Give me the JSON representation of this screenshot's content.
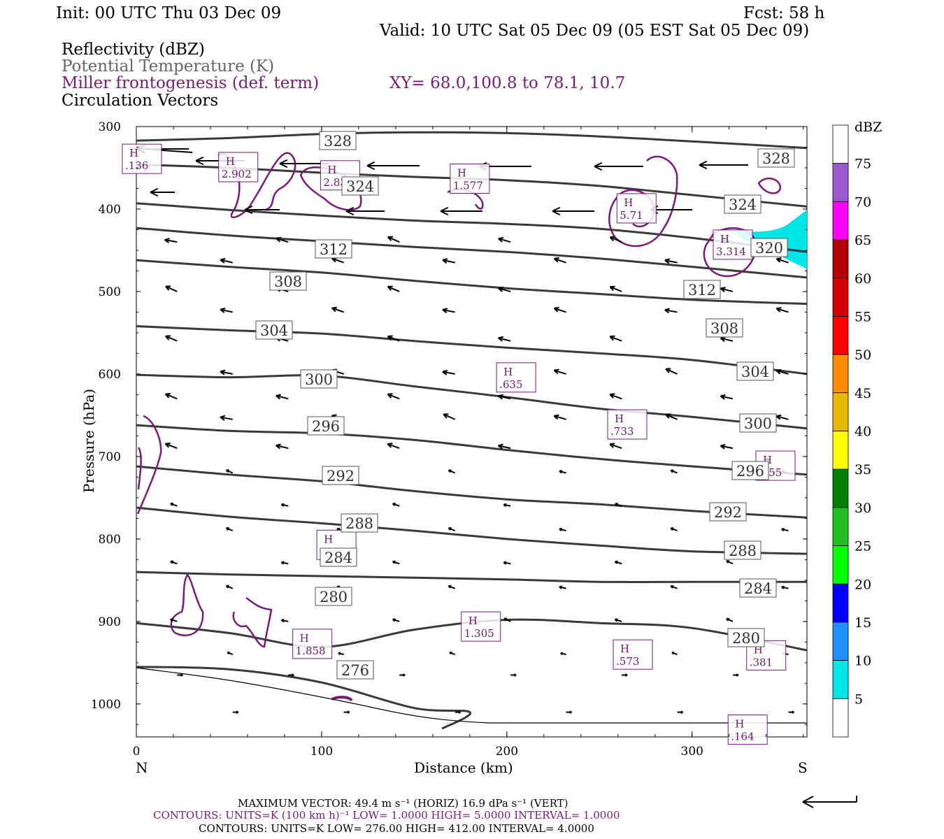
{
  "header": {
    "init": "Init: 00 UTC Thu 03 Dec 09",
    "fcst": "Fcst:   58 h",
    "valid": "Valid: 10 UTC Sat 05 Dec 09 (05 EST Sat 05 Dec 09)",
    "line1": "Reflectivity (dBZ)",
    "line2": "Potential Temperature (K)",
    "line3": "Miller frontogenesis (def. term)",
    "xy": "XY=  68.0,100.8 to  78.1, 10.7",
    "line4": "Circulation Vectors"
  },
  "axes": {
    "ylabel": "Pressure (hPa)",
    "xlabel": "Distance (km)",
    "y_ticks": [
      "300",
      "400",
      "500",
      "600",
      "700",
      "800",
      "900",
      "1000"
    ],
    "x_ticks": [
      "0",
      "100",
      "200",
      "300"
    ],
    "left_end": "N",
    "right_end": "S"
  },
  "colorbar": {
    "title": "dBZ",
    "levels": [
      "75",
      "70",
      "65",
      "60",
      "55",
      "50",
      "45",
      "40",
      "35",
      "30",
      "25",
      "20",
      "15",
      "10",
      "5"
    ],
    "colors": [
      "#ffffff",
      "#9b59d0",
      "#ff00ff",
      "#b30000",
      "#d40000",
      "#ff0000",
      "#ff8c00",
      "#e6b800",
      "#ffff00",
      "#008000",
      "#20c020",
      "#00ff00",
      "#0000ff",
      "#1e90ff",
      "#00e5e5"
    ]
  },
  "footer": {
    "max_vector": "MAXIMUM VECTOR:  49.4 m s⁻¹ (HORIZ)          16.9 dPa s⁻¹ (VERT)",
    "contours_fg": "CONTOURS:  UNITS=K (100 km h)⁻¹  LOW=   1.0000      HIGH=   5.0000      INTERVAL=    1.0000",
    "contours_theta": "CONTOURS:  UNITS=K  LOW=   276.00       HIGH=   412.00       INTERVAL=     4.0000"
  },
  "chart_data": {
    "type": "contour-cross-section",
    "xlim": [
      0,
      362
    ],
    "ylim": [
      1040,
      300
    ],
    "theta_contours": [
      {
        "label": "328",
        "x": [
          0,
          50,
          100,
          150,
          200,
          250,
          300,
          362
        ],
        "y": [
          317,
          314,
          309,
          307,
          308,
          312,
          318,
          326
        ]
      },
      {
        "label": "324",
        "x": [
          0,
          50,
          100,
          150,
          200,
          250,
          300,
          362
        ],
        "y": [
          346,
          350,
          356,
          361,
          365,
          372,
          383,
          397
        ]
      },
      {
        "label": "320",
        "x": [
          0,
          50,
          100,
          150,
          200,
          250,
          300,
          362
        ],
        "y": [
          393,
          401,
          408,
          414,
          418,
          424,
          435,
          452
        ]
      },
      {
        "label": "312",
        "x": [
          0,
          50,
          100,
          150,
          200,
          250,
          300,
          362
        ],
        "y": [
          423,
          432,
          439,
          446,
          452,
          460,
          470,
          483
        ]
      },
      {
        "label": "308",
        "x": [
          0,
          50,
          100,
          150,
          200,
          250,
          300,
          362
        ],
        "y": [
          462,
          470,
          477,
          487,
          496,
          503,
          510,
          515
        ]
      },
      {
        "label": "304",
        "x": [
          0,
          50,
          100,
          150,
          200,
          250,
          300,
          362
        ],
        "y": [
          542,
          547,
          551,
          560,
          568,
          575,
          583,
          600
        ]
      },
      {
        "label": "300",
        "x": [
          0,
          50,
          100,
          150,
          200,
          250,
          300,
          362
        ],
        "y": [
          601,
          604,
          602,
          615,
          628,
          642,
          652,
          666
        ]
      },
      {
        "label": "296",
        "x": [
          0,
          50,
          100,
          150,
          200,
          250,
          300,
          362
        ],
        "y": [
          662,
          669,
          672,
          680,
          692,
          703,
          712,
          722
        ]
      },
      {
        "label": "292",
        "x": [
          0,
          50,
          100,
          150,
          200,
          250,
          300,
          362
        ],
        "y": [
          712,
          722,
          730,
          742,
          752,
          758,
          766,
          774
        ]
      },
      {
        "label": "288",
        "x": [
          0,
          50,
          100,
          150,
          200,
          250,
          300,
          362
        ],
        "y": [
          762,
          773,
          781,
          790,
          800,
          808,
          815,
          818
        ]
      },
      {
        "label": "284",
        "x": [
          0,
          50,
          100,
          150,
          200,
          250,
          300,
          362
        ],
        "y": [
          840,
          843,
          845,
          847,
          849,
          852,
          852,
          852
        ]
      },
      {
        "label": "280",
        "x": [
          0,
          50,
          100,
          150,
          200,
          250,
          300,
          362
        ],
        "y": [
          902,
          914,
          931,
          910,
          898,
          902,
          908,
          935
        ]
      },
      {
        "label": "276",
        "x": [
          0,
          50,
          100,
          150,
          180,
          165
        ],
        "y": [
          955,
          958,
          974,
          1005,
          1010,
          1030
        ]
      }
    ],
    "frontogenesis_maxima": [
      {
        "label": "H",
        "value": ".136",
        "x": 3,
        "p": 340
      },
      {
        "label": "H",
        "value": "2.902",
        "x": 55,
        "p": 350
      },
      {
        "label": "H",
        "value": "2.838",
        "x": 110,
        "p": 360
      },
      {
        "label": "H",
        "value": "1.577",
        "x": 180,
        "p": 364
      },
      {
        "label": "H",
        "value": "5.71",
        "x": 270,
        "p": 400
      },
      {
        "label": "H",
        "value": "3.314",
        "x": 322,
        "p": 444
      },
      {
        "label": "H",
        "value": ".635",
        "x": 205,
        "p": 605
      },
      {
        "label": "H",
        "value": ".733",
        "x": 265,
        "p": 662
      },
      {
        "label": "H",
        "value": ".555",
        "x": 345,
        "p": 712
      },
      {
        "label": "H",
        "value": "1.445",
        "x": 108,
        "p": 808
      },
      {
        "label": "H",
        "value": "1.305",
        "x": 186,
        "p": 907
      },
      {
        "label": "H",
        "value": "1.858",
        "x": 95,
        "p": 928
      },
      {
        "label": "H",
        "value": ".573",
        "x": 268,
        "p": 941
      },
      {
        "label": "H",
        "value": ".381",
        "x": 340,
        "p": 942
      },
      {
        "label": "H",
        "value": ".164",
        "x": 330,
        "p": 1032
      }
    ]
  }
}
